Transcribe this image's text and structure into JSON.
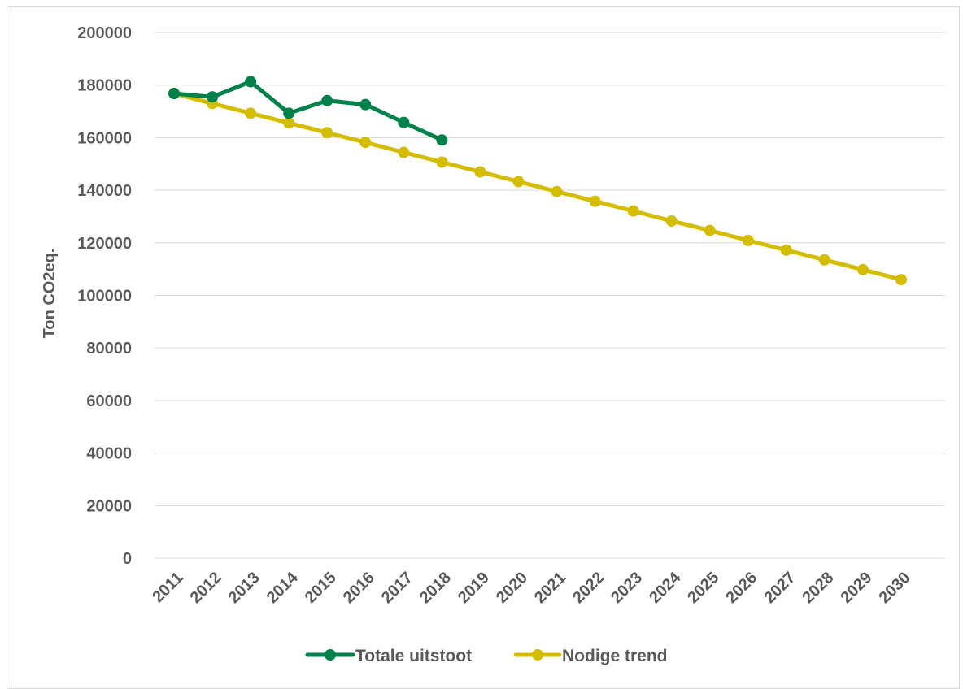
{
  "chart_data": {
    "type": "line",
    "title": "",
    "xlabel": "",
    "ylabel": "Ton CO2eq.",
    "ylim": [
      0,
      200000
    ],
    "yticks": [
      "0",
      "20000",
      "40000",
      "60000",
      "80000",
      "100000",
      "120000",
      "140000",
      "160000",
      "180000",
      "200000"
    ],
    "categories": [
      "2011",
      "2012",
      "2013",
      "2014",
      "2015",
      "2016",
      "2017",
      "2018",
      "2019",
      "2020",
      "2021",
      "2022",
      "2023",
      "2024",
      "2025",
      "2026",
      "2027",
      "2028",
      "2029",
      "2030"
    ],
    "grid": true,
    "legend_position": "bottom",
    "series": [
      {
        "name": "Totale uitstoot",
        "color": "#00804a",
        "values": [
          176800,
          175500,
          181300,
          169300,
          174100,
          172600,
          165800,
          159100,
          null,
          null,
          null,
          null,
          null,
          null,
          null,
          null,
          null,
          null,
          null,
          null
        ]
      },
      {
        "name": "Nodige trend",
        "color": "#d4bc00",
        "values": [
          176800,
          173000,
          169300,
          165600,
          161900,
          158200,
          154400,
          150700,
          147000,
          143300,
          139500,
          135800,
          132100,
          128300,
          124700,
          120900,
          117200,
          113500,
          109800,
          106000
        ]
      }
    ]
  }
}
